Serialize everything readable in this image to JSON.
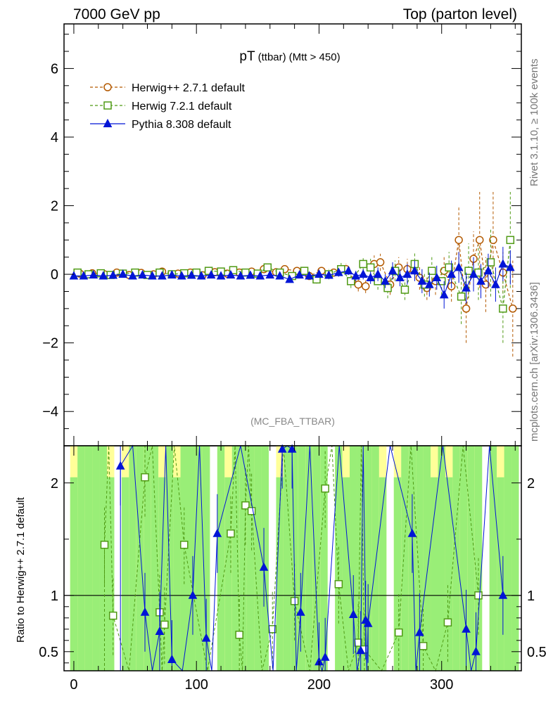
{
  "header": {
    "left": "7000 GeV pp",
    "right": "Top (parton level)"
  },
  "side_labels": {
    "rivet": "Rivet 3.1.10, ≥ 100k events",
    "mcplots": "mcplots.cern.ch [arXiv:1306.3436]"
  },
  "analysis_tag": "(MC_FBA_TTBAR)",
  "ratio_ylabel": "Ratio to Herwig++ 2.7.1 default",
  "chart_data": [
    {
      "type": "line",
      "title_main": "pT",
      "title_sub": "(ttbar)",
      "title_cut": "(Mtt > 450)",
      "xlim": [
        -8,
        365
      ],
      "ylim": [
        -5,
        7.3
      ],
      "yticks": [
        6,
        4,
        2,
        0,
        -2,
        -4
      ],
      "ytick_labels": [
        "6",
        "4",
        "2",
        "0",
        "−2",
        "−4"
      ],
      "legend_position": "top-left",
      "series": [
        {
          "name": "Herwig++ 2.7.1 default",
          "color": "#b35900",
          "marker": "circle-open",
          "dashed": true,
          "points": [
            [
              5,
              0.02
            ],
            [
              15,
              0.03
            ],
            [
              25,
              0.0
            ],
            [
              35,
              0.05
            ],
            [
              45,
              -0.02
            ],
            [
              55,
              0.04
            ],
            [
              65,
              0.0
            ],
            [
              72,
              0.08
            ],
            [
              85,
              0.02
            ],
            [
              95,
              0.05
            ],
            [
              105,
              -0.03
            ],
            [
              115,
              0.06
            ],
            [
              125,
              0.02
            ],
            [
              135,
              0.05
            ],
            [
              145,
              0.08
            ],
            [
              155,
              0.15
            ],
            [
              165,
              0.06
            ],
            [
              172,
              0.15
            ],
            [
              182,
              0.1
            ],
            [
              192,
              -0.05
            ],
            [
              202,
              0.1
            ],
            [
              212,
              0.05
            ],
            [
              222,
              0.15
            ],
            [
              232,
              -0.3
            ],
            [
              238,
              -0.35
            ],
            [
              245,
              0.3
            ],
            [
              250,
              0.35
            ],
            [
              258,
              -0.3
            ],
            [
              265,
              0.2
            ],
            [
              272,
              0.15
            ],
            [
              282,
              -0.1
            ],
            [
              288,
              -0.4
            ],
            [
              295,
              -0.2
            ],
            [
              302,
              0.1
            ],
            [
              308,
              -0.35
            ],
            [
              314,
              1.0
            ],
            [
              320,
              -1.0
            ],
            [
              326,
              0.45
            ],
            [
              331,
              1.0
            ],
            [
              336,
              -0.3
            ],
            [
              342,
              1.0
            ],
            [
              350,
              0.05
            ],
            [
              358,
              -1.0
            ]
          ],
          "errors": [
            0.05,
            0.05,
            0.05,
            0.05,
            0.05,
            0.05,
            0.05,
            0.06,
            0.06,
            0.06,
            0.06,
            0.06,
            0.07,
            0.07,
            0.08,
            0.08,
            0.08,
            0.09,
            0.1,
            0.1,
            0.12,
            0.12,
            0.15,
            0.2,
            0.2,
            0.25,
            0.25,
            0.3,
            0.3,
            0.3,
            0.35,
            0.35,
            0.4,
            0.4,
            0.45,
            1.0,
            1.0,
            0.8,
            1.4,
            0.8,
            1.4,
            0.6,
            1.4
          ]
        },
        {
          "name": "Herwig 7.2.1 default",
          "color": "#4f9a14",
          "marker": "square-open",
          "dashed": true,
          "points": [
            [
              3,
              0.05
            ],
            [
              12,
              0.0
            ],
            [
              22,
              0.03
            ],
            [
              30,
              -0.02
            ],
            [
              40,
              0.02
            ],
            [
              50,
              0.05
            ],
            [
              60,
              -0.02
            ],
            [
              70,
              0.05
            ],
            [
              80,
              0.0
            ],
            [
              90,
              0.03
            ],
            [
              100,
              0.05
            ],
            [
              110,
              0.1
            ],
            [
              120,
              0.08
            ],
            [
              130,
              0.12
            ],
            [
              140,
              0.05
            ],
            [
              150,
              0.02
            ],
            [
              158,
              0.2
            ],
            [
              168,
              0.05
            ],
            [
              178,
              -0.05
            ],
            [
              188,
              0.1
            ],
            [
              198,
              -0.15
            ],
            [
              208,
              0.0
            ],
            [
              218,
              0.15
            ],
            [
              226,
              -0.2
            ],
            [
              236,
              0.3
            ],
            [
              242,
              0.2
            ],
            [
              248,
              -0.2
            ],
            [
              256,
              -0.4
            ],
            [
              262,
              0.1
            ],
            [
              270,
              -0.45
            ],
            [
              278,
              0.3
            ],
            [
              286,
              -0.3
            ],
            [
              292,
              0.1
            ],
            [
              300,
              -0.2
            ],
            [
              306,
              0.2
            ],
            [
              316,
              -0.65
            ],
            [
              322,
              0.1
            ],
            [
              330,
              0.05
            ],
            [
              340,
              0.35
            ],
            [
              350,
              -1.0
            ],
            [
              356,
              1.0
            ]
          ],
          "errors": [
            0.05,
            0.05,
            0.05,
            0.05,
            0.05,
            0.05,
            0.05,
            0.05,
            0.06,
            0.06,
            0.06,
            0.07,
            0.07,
            0.08,
            0.08,
            0.08,
            0.1,
            0.1,
            0.1,
            0.12,
            0.12,
            0.15,
            0.18,
            0.2,
            0.2,
            0.25,
            0.25,
            0.3,
            0.3,
            0.3,
            0.35,
            0.35,
            0.4,
            0.4,
            0.45,
            0.8,
            0.8,
            0.8,
            1.0,
            1.0,
            1.4
          ]
        },
        {
          "name": "Pythia 8.308 default",
          "color": "#0015d6",
          "marker": "triangle-filled",
          "dashed": false,
          "points": [
            [
              0,
              -0.05
            ],
            [
              8,
              -0.05
            ],
            [
              16,
              -0.02
            ],
            [
              24,
              -0.05
            ],
            [
              32,
              -0.03
            ],
            [
              40,
              0.0
            ],
            [
              48,
              -0.05
            ],
            [
              56,
              -0.02
            ],
            [
              64,
              -0.05
            ],
            [
              72,
              -0.05
            ],
            [
              80,
              -0.02
            ],
            [
              88,
              -0.05
            ],
            [
              96,
              -0.03
            ],
            [
              104,
              -0.05
            ],
            [
              112,
              -0.02
            ],
            [
              120,
              -0.05
            ],
            [
              128,
              -0.02
            ],
            [
              136,
              -0.05
            ],
            [
              144,
              -0.03
            ],
            [
              152,
              -0.05
            ],
            [
              160,
              -0.02
            ],
            [
              168,
              -0.05
            ],
            [
              176,
              -0.15
            ],
            [
              184,
              -0.02
            ],
            [
              192,
              -0.05
            ],
            [
              200,
              0.0
            ],
            [
              208,
              -0.03
            ],
            [
              216,
              0.05
            ],
            [
              224,
              0.1
            ],
            [
              230,
              -0.05
            ],
            [
              236,
              0.0
            ],
            [
              242,
              -0.1
            ],
            [
              248,
              0.0
            ],
            [
              254,
              -0.2
            ],
            [
              260,
              0.1
            ],
            [
              266,
              -0.1
            ],
            [
              272,
              0.0
            ],
            [
              278,
              0.1
            ],
            [
              284,
              -0.2
            ],
            [
              290,
              -0.3
            ],
            [
              296,
              -0.1
            ],
            [
              302,
              -0.6
            ],
            [
              308,
              0.0
            ],
            [
              314,
              0.2
            ],
            [
              320,
              -0.4
            ],
            [
              326,
              0.0
            ],
            [
              332,
              -0.2
            ],
            [
              338,
              0.1
            ],
            [
              344,
              -0.3
            ],
            [
              350,
              0.3
            ],
            [
              356,
              0.2
            ]
          ],
          "errors": [
            0.04,
            0.04,
            0.04,
            0.04,
            0.04,
            0.04,
            0.04,
            0.04,
            0.04,
            0.05,
            0.05,
            0.05,
            0.05,
            0.05,
            0.05,
            0.06,
            0.06,
            0.06,
            0.07,
            0.07,
            0.07,
            0.08,
            0.08,
            0.08,
            0.09,
            0.1,
            0.1,
            0.12,
            0.12,
            0.15,
            0.15,
            0.18,
            0.2,
            0.2,
            0.25,
            0.25,
            0.3,
            0.3,
            0.35,
            0.35,
            0.35,
            0.4,
            0.4,
            0.45,
            0.45,
            0.5,
            0.5,
            0.5,
            0.5,
            0.5,
            0.5
          ]
        }
      ]
    },
    {
      "type": "line",
      "title": "",
      "ylabel": "Ratio to Herwig++ 2.7.1 default",
      "xlim": [
        -8,
        365
      ],
      "ylim": [
        0.33,
        2.33
      ],
      "yticks": [
        2,
        1,
        0.5
      ],
      "ytick_labels": [
        "2",
        "1",
        "0.5"
      ],
      "xticks": [
        0,
        100,
        200,
        300
      ],
      "xtick_labels": [
        "0",
        "100",
        "200",
        "300"
      ],
      "reference_line": 1,
      "band_colors": {
        "outer": "#ffff99",
        "inner": "#99ee77"
      },
      "series": [
        {
          "name": "Herwig 7.2.1 default",
          "color": "#4f9a14",
          "marker": "square-open",
          "dashed": true,
          "points": [
            [
              25,
              1.45
            ],
            [
              32,
              0.82
            ],
            [
              58,
              2.05
            ],
            [
              70,
              0.85
            ],
            [
              74,
              0.74
            ],
            [
              90,
              1.45
            ],
            [
              128,
              1.55
            ],
            [
              135,
              0.65
            ],
            [
              140,
              1.8
            ],
            [
              145,
              1.75
            ],
            [
              162,
              0.7
            ],
            [
              180,
              0.95
            ],
            [
              205,
              1.95
            ],
            [
              216,
              1.1
            ],
            [
              232,
              0.58
            ],
            [
              237,
              0.52
            ],
            [
              265,
              0.67
            ],
            [
              285,
              0.55
            ],
            [
              305,
              0.76
            ],
            [
              330,
              1.0
            ]
          ]
        },
        {
          "name": "Pythia 8.308 default",
          "color": "#0015d6",
          "marker": "triangle-filled",
          "dashed": false,
          "points": [
            [
              38,
              2.15
            ],
            [
              58,
              0.85
            ],
            [
              70,
              0.68
            ],
            [
              80,
              0.43
            ],
            [
              97,
              1.0
            ],
            [
              108,
              0.62
            ],
            [
              117,
              1.55
            ],
            [
              155,
              1.25
            ],
            [
              170,
              2.3
            ],
            [
              178,
              2.3
            ],
            [
              185,
              0.85
            ],
            [
              200,
              0.41
            ],
            [
              205,
              0.45
            ],
            [
              228,
              0.83
            ],
            [
              234,
              0.51
            ],
            [
              238,
              0.78
            ],
            [
              240,
              0.75
            ],
            [
              276,
              1.55
            ],
            [
              282,
              0.67
            ],
            [
              320,
              0.7
            ],
            [
              328,
              0.5
            ],
            [
              350,
              1.0
            ]
          ]
        }
      ]
    }
  ]
}
